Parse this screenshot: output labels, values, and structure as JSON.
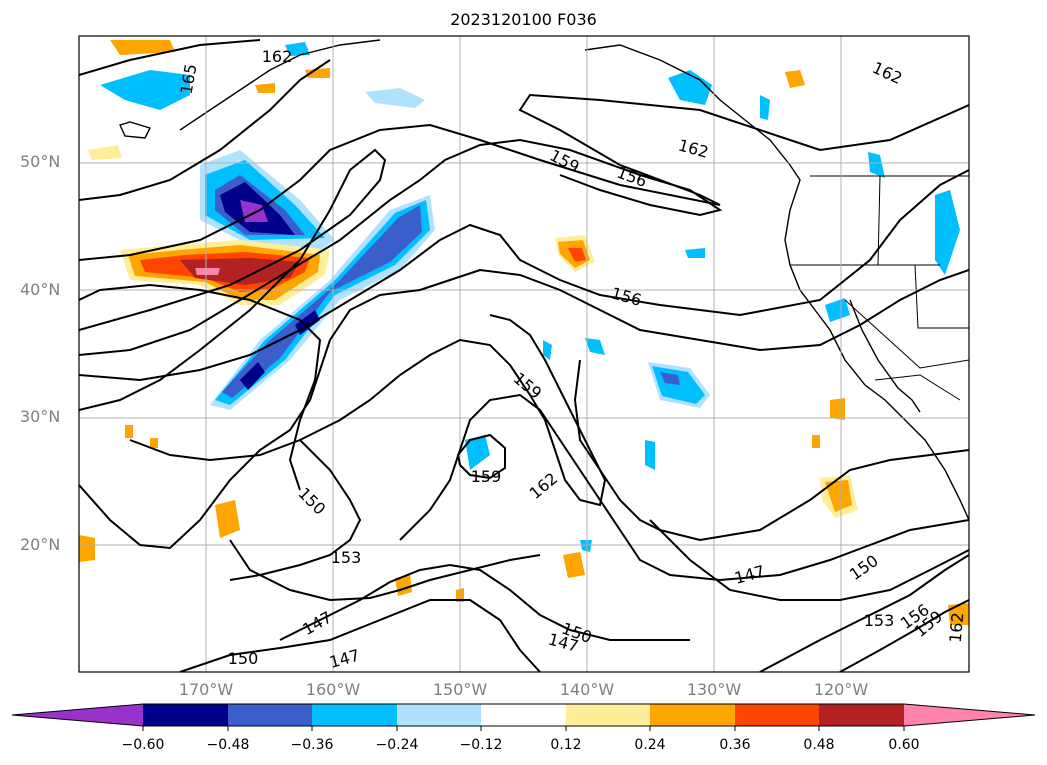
{
  "title": "2023120100 F036",
  "map": {
    "lat_labels": [
      "50°N",
      "40°N",
      "30°N",
      "20°N"
    ],
    "lon_labels": [
      "170°W",
      "160°W",
      "150°W",
      "140°W",
      "130°W",
      "120°W"
    ],
    "grid": true,
    "contour_labels": [
      "162",
      "165",
      "162",
      "159",
      "156",
      "156",
      "159",
      "159",
      "162",
      "150",
      "153",
      "147",
      "147",
      "150",
      "150",
      "147",
      "147",
      "150",
      "153",
      "156",
      "159",
      "162",
      "162"
    ],
    "shading_colors": {
      "purple": "#9932cc",
      "navy": "#00008b",
      "royal": "#3a5fcd",
      "deepsky": "#00bfff",
      "lightblue": "#b0e2ff",
      "lightyellow": "#ffee99",
      "orange": "#ffa500",
      "orangered": "#ff4500",
      "firebrick": "#b22222",
      "pink": "#ff83aa"
    }
  },
  "colorbar": {
    "ticks": [
      "−0.60",
      "−0.48",
      "−0.36",
      "−0.24",
      "−0.12",
      "0.12",
      "0.24",
      "0.36",
      "0.48",
      "0.60"
    ],
    "colors": [
      "#9932cc",
      "#00008b",
      "#3a5fcd",
      "#00bfff",
      "#b0e2ff",
      "#ffffff",
      "#ffee99",
      "#ffa500",
      "#ff4500",
      "#b22222",
      "#ff83aa"
    ]
  }
}
